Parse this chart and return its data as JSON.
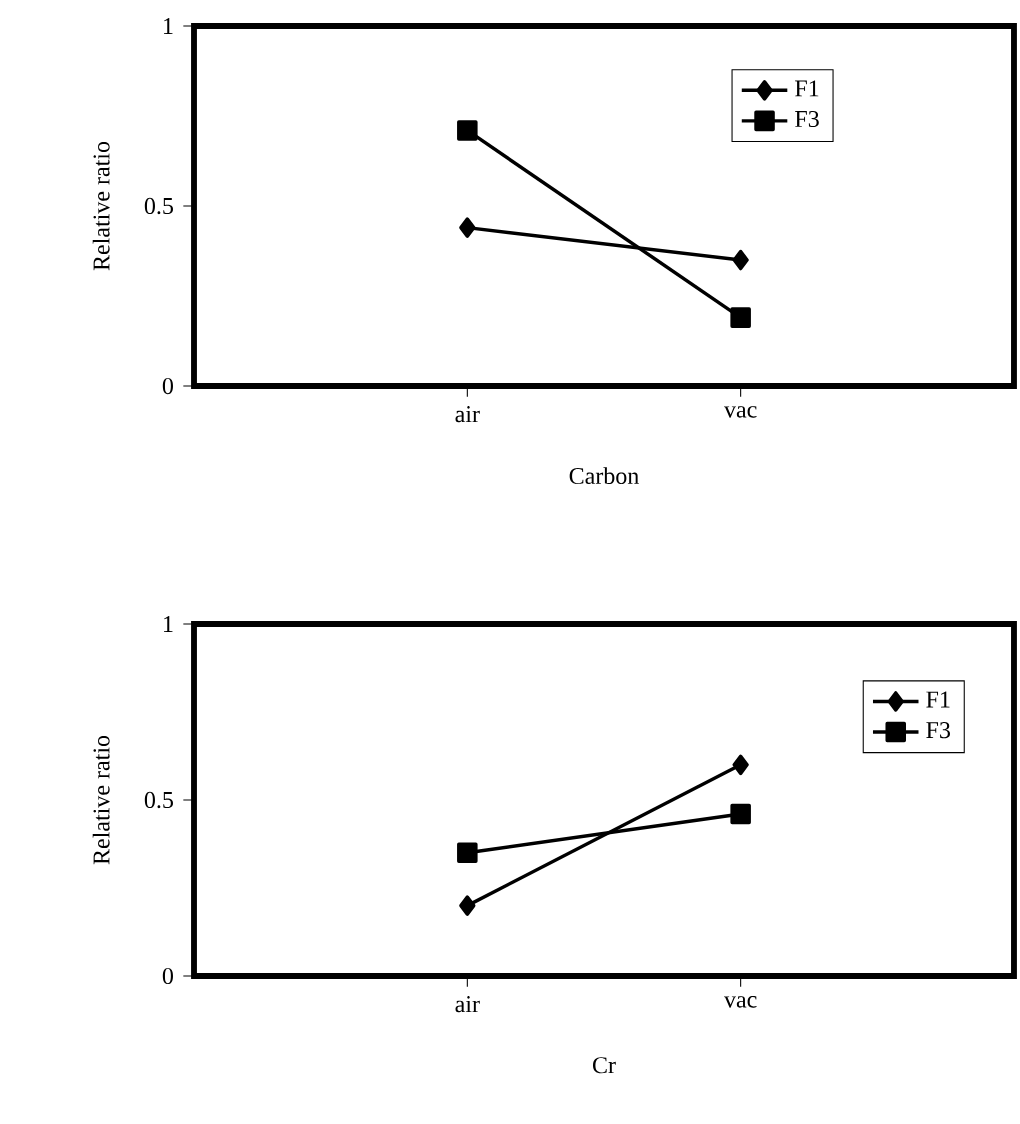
{
  "chart_data": [
    {
      "type": "line",
      "xlabel": "Carbon",
      "ylabel": "Relative ratio",
      "categories": [
        "air",
        "vac"
      ],
      "ylim": [
        0,
        1
      ],
      "yticks": [
        0,
        0.5,
        1
      ],
      "legend": "top right",
      "grid": false,
      "line_style": "solid",
      "series": [
        {
          "name": "F1",
          "color": "#000000",
          "marker": "diamond",
          "values": [
            0.44,
            0.35
          ]
        },
        {
          "name": "F3",
          "color": "#000000",
          "marker": "square",
          "values": [
            0.71,
            0.19
          ]
        }
      ]
    },
    {
      "type": "line",
      "xlabel": "Cr",
      "ylabel": "Relative ratio",
      "categories": [
        "air",
        "vac"
      ],
      "ylim": [
        0,
        1
      ],
      "yticks": [
        0,
        0.5,
        1
      ],
      "legend": "top right",
      "grid": false,
      "line_style": "solid",
      "series": [
        {
          "name": "F1",
          "color": "#000000",
          "marker": "diamond",
          "values": [
            0.2,
            0.6
          ]
        },
        {
          "name": "F3",
          "color": "#000000",
          "marker": "square",
          "values": [
            0.35,
            0.46
          ]
        }
      ]
    }
  ]
}
